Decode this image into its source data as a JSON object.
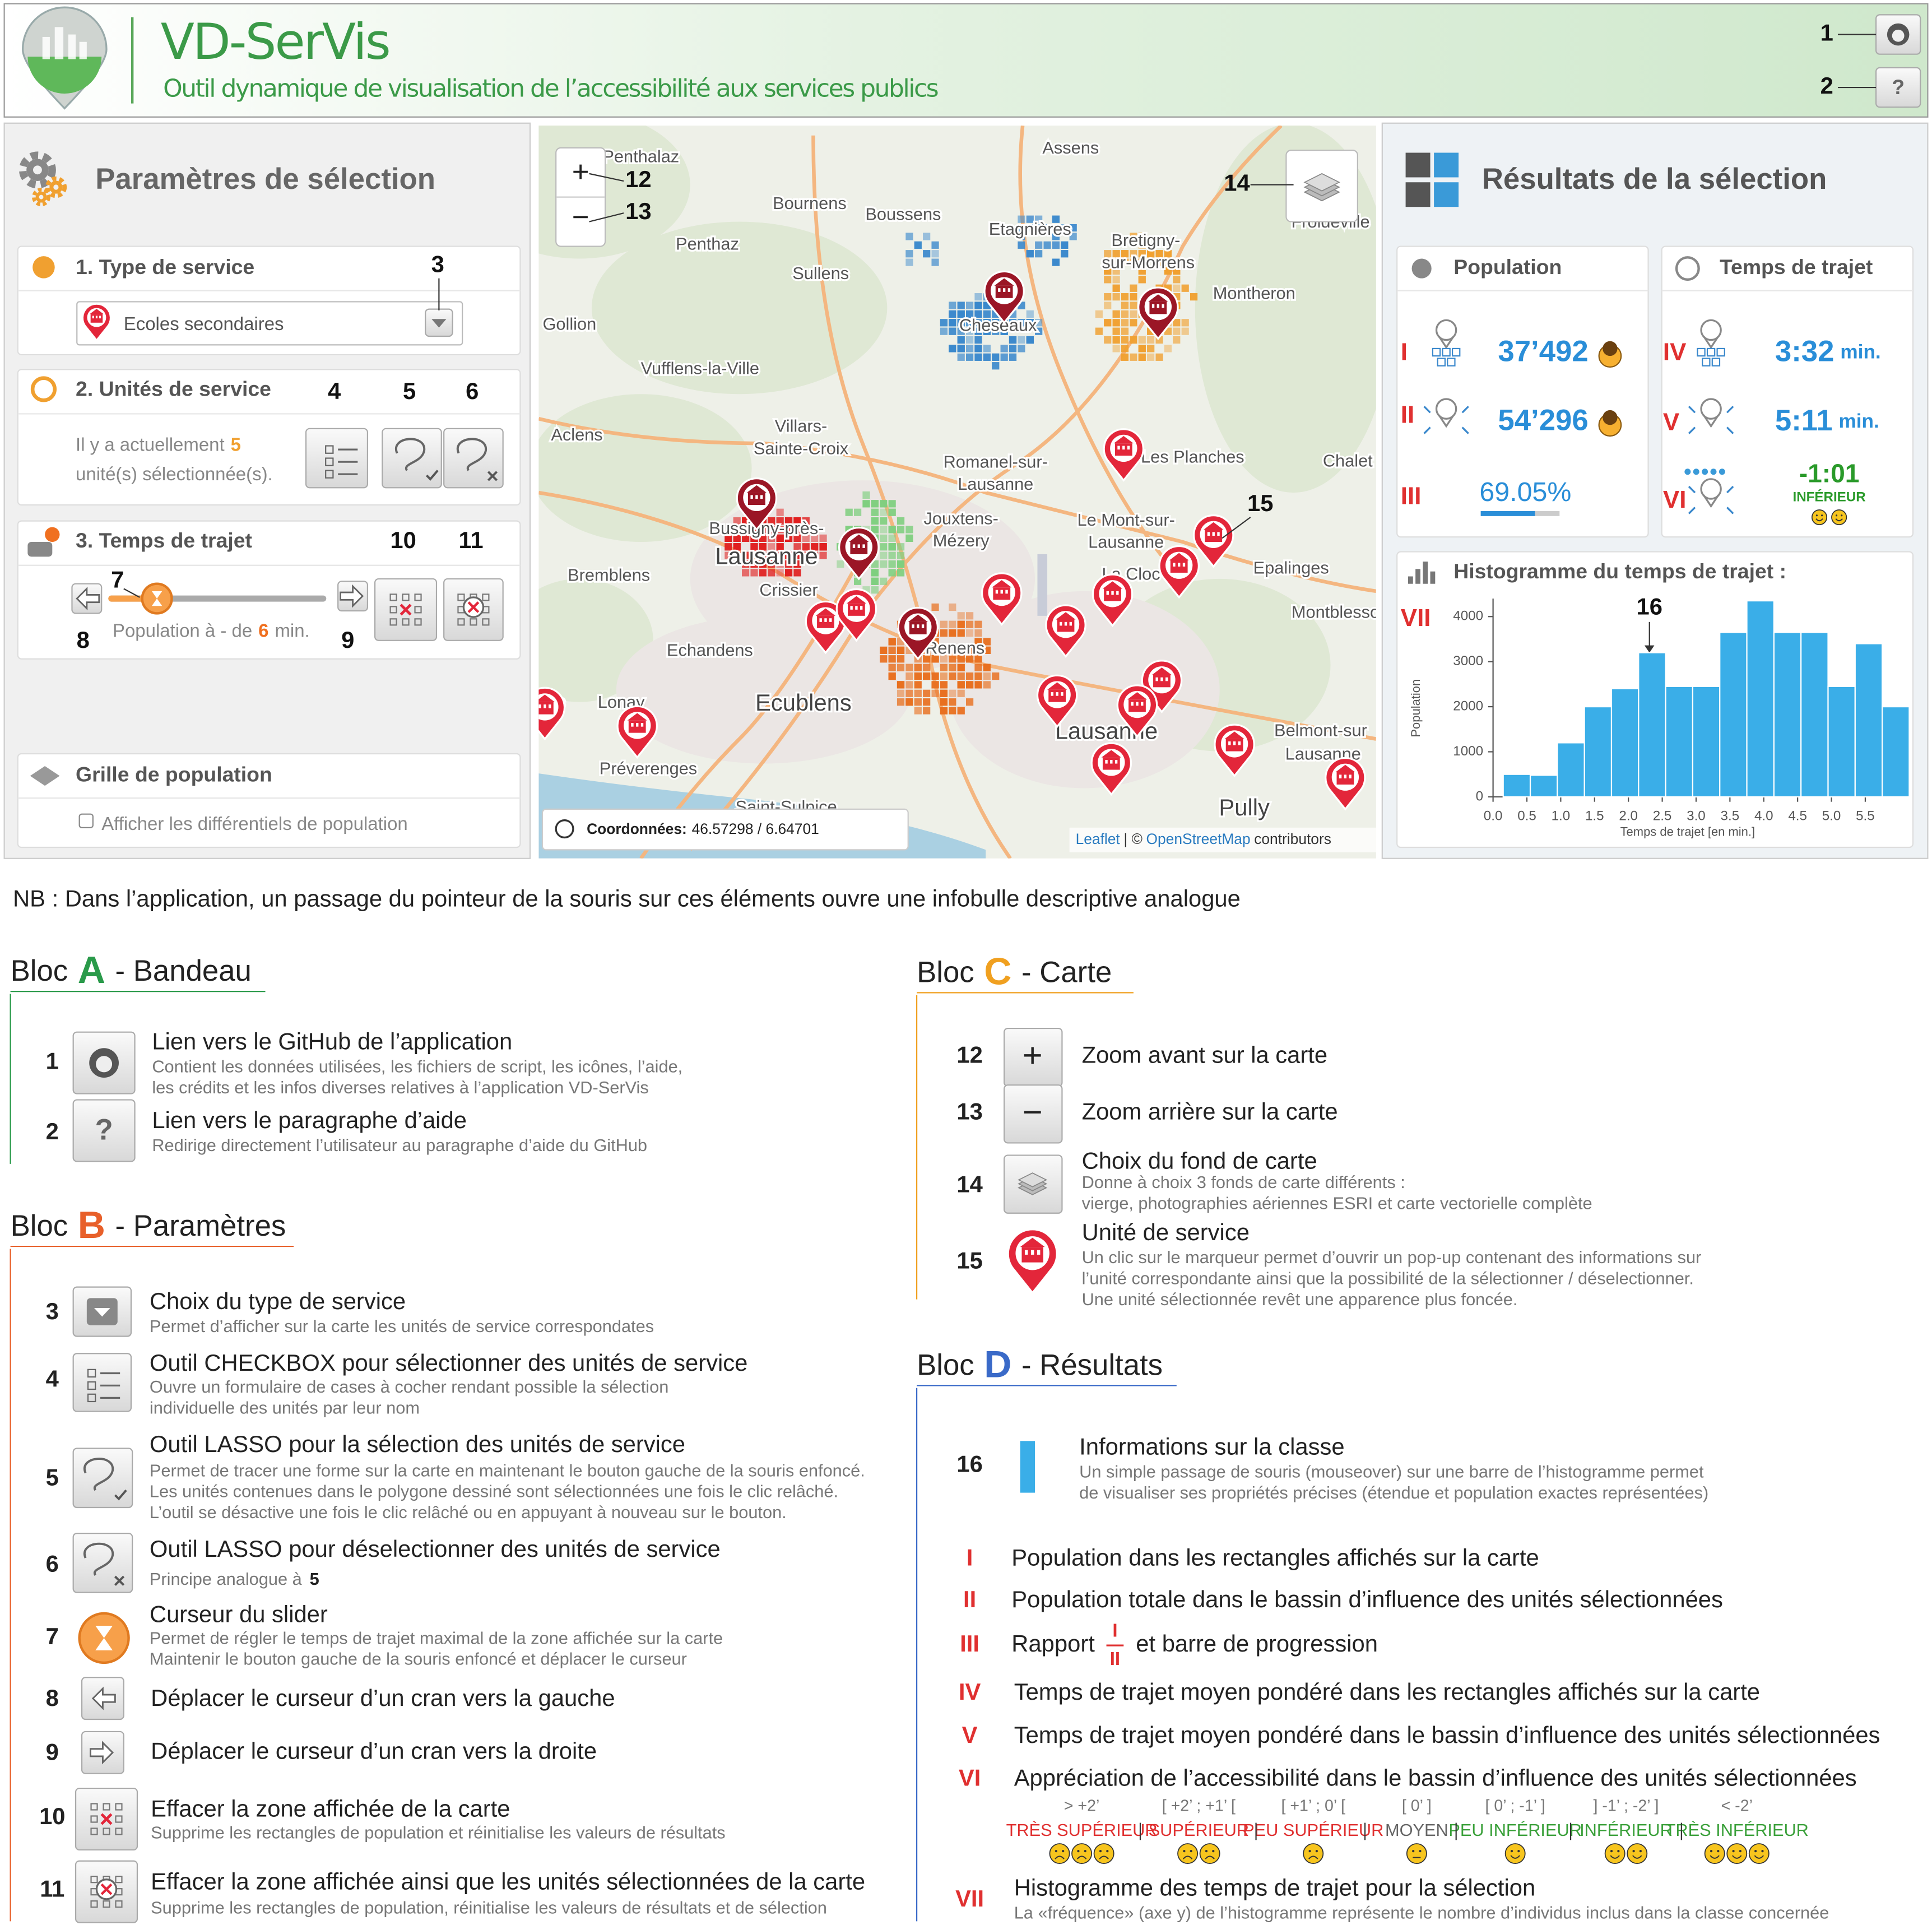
{
  "header": {
    "title": "VD-SerVis",
    "subtitle": "Outil dynamique de visualisation de l’accessibilité aux services publics",
    "help_icon": "?"
  },
  "params": {
    "title": "Paramètres de sélection",
    "service_type": {
      "heading": "1. Type de service",
      "selected": "Ecoles secondaires"
    },
    "units": {
      "heading": "2. Unités de service",
      "text_a": "Il y a actuellement",
      "count": "5",
      "text_b": "unité(s) sélectionnée(s)."
    },
    "travel": {
      "heading": "3. Temps de trajet",
      "text": "Population à - de",
      "value": "6",
      "unit": "min."
    },
    "grid": {
      "heading": "Grille de population",
      "checkbox": "Afficher les différentiels de population"
    }
  },
  "map": {
    "zoom_in": "+",
    "zoom_out": "−",
    "places": [
      "Penthalaz",
      "Assens",
      "Bournens",
      "Boussens",
      "Etagnières",
      "Froideville",
      "Penthaz",
      "Sullens",
      "Bretigny-",
      "sur-Morrens",
      "Cheseaux",
      "Montheron",
      "Gollion",
      "Vufflens-la-Ville",
      "Aclens",
      "Villars-",
      "Sainte-Croix",
      "Romanel-sur-",
      "Lausanne",
      "Les Planches",
      "Chalet",
      "Bussigny-près-",
      "Lausanne",
      "Jouxtens-",
      "Mézery",
      "Le Mont-sur-",
      "Lausanne",
      "La Cloc",
      "Epalinges",
      "Bremblens",
      "Crissier",
      "Montblesson",
      "Echandens",
      "Renens",
      "Lonay",
      "Ecublens",
      "ens",
      "Belmont-sur",
      "Lausanne",
      "Préverenges",
      "Saint-Sulpice",
      "Lausanne",
      "Pully"
    ],
    "coords_label": "Coordonnées:",
    "coords_value": "46.57298 / 6.64701",
    "attribution": [
      "Leaflet",
      "| ©",
      "OpenStreetMap",
      "contributors"
    ]
  },
  "results": {
    "title": "Résultats de la sélection",
    "population": "Population",
    "travel_time": "Temps de trajet",
    "pop_map": "37’492",
    "pop_total": "54’296",
    "ratio": "69.05%",
    "time_map": "3:32",
    "time_total": "5:11",
    "unit": "min.",
    "diff": "-1:01",
    "diff_class": "INFÉRIEUR",
    "histogram_title": "Histogramme du temps de trajet :"
  },
  "chart_data": {
    "type": "histogram",
    "bins": [
      0.15,
      0.55,
      0.95,
      1.35,
      1.75,
      2.15,
      2.55,
      2.95,
      3.35,
      3.75,
      4.15,
      4.55,
      4.95,
      5.35,
      5.75,
      6.15
    ],
    "values": [
      500,
      480,
      1200,
      2000,
      2400,
      3200,
      2450,
      2450,
      3650,
      4350,
      3650,
      3650,
      2450,
      3400,
      2000
    ],
    "color": "#3aaee8",
    "xlim": [
      0,
      6.15
    ],
    "ylim": [
      0,
      4400
    ],
    "xticks": [
      {
        "value": 0,
        "label": "0.0"
      },
      0.5,
      {
        "value": 1,
        "label": "1.0"
      },
      1.5,
      {
        "value": 2,
        "label": "2.0"
      },
      2.5,
      {
        "value": 3,
        "label": "3.0"
      },
      3.5,
      {
        "value": 4,
        "label": "4.0"
      },
      4.5,
      {
        "value": 5,
        "label": "5.0"
      },
      5.5
    ],
    "yticks": [
      0,
      1000,
      2000,
      3000,
      4000
    ],
    "xlabel": "Temps de trajet [en min.]",
    "ylabel": "Population"
  },
  "note": "NB : Dans l’application, un passage du pointeur de la souris sur ces éléments ouvre une infobulle descriptive analogue",
  "legend": {
    "prefix": "Bloc",
    "blocks": [
      {
        "letter": "A",
        "name": "- Bandeau",
        "items": [
          {
            "num": "1",
            "title": "Lien vers le GitHub de l’application",
            "desc": [
              "Contient les données utilisées, les fichiers de script, les icônes, l’aide,",
              "les crédits et les infos diverses relatives à l’application VD-SerVis"
            ]
          },
          {
            "num": "2",
            "title": "Lien vers le paragraphe d’aide",
            "desc": [
              "Redirige directement l’utilisateur au paragraphe d’aide du GitHub"
            ]
          }
        ]
      },
      {
        "letter": "B",
        "name": "- Paramètres",
        "items": [
          {
            "num": "3",
            "title": "Choix du type de service",
            "desc": [
              "Permet d’afficher sur la carte les unités de service correspondates"
            ]
          },
          {
            "num": "4",
            "title": "Outil CHECKBOX pour sélectionner des unités de service",
            "desc": [
              "Ouvre un formulaire de cases à cocher rendant possible la sélection",
              "individuelle des unités par leur nom"
            ]
          },
          {
            "num": "5",
            "title": "Outil LASSO pour la sélection des unités de service",
            "desc": [
              "Permet de tracer une forme sur la carte en maintenant le bouton gauche de la souris enfoncé.",
              "Les unités contenues dans le polygone dessiné sont sélectionnées une fois le clic relâché.",
              "L’outil se désactive une fois le clic relâché ou en appuyant à nouveau sur le bouton."
            ]
          },
          {
            "num": "6",
            "title": "Outil LASSO pour déselectionner des unités de service",
            "desc": [
              "Principe analogue à"
            ]
          },
          {
            "num": "7",
            "title": "Curseur du slider",
            "desc": [
              "Permet de régler le temps de trajet maximal de la zone affichée sur la carte",
              "Maintenir le bouton gauche de la souris enfoncé et déplacer le curseur"
            ]
          },
          {
            "num": "8",
            "title": "Déplacer le curseur d’un cran vers la gauche",
            "desc": []
          },
          {
            "num": "9",
            "title": "Déplacer le curseur d’un cran vers la droite",
            "desc": []
          },
          {
            "num": "10",
            "title": "Effacer la zone affichée de la carte",
            "desc": [
              "Supprime les rectangles de population et réinitialise les valeurs de résultats"
            ]
          },
          {
            "num": "11",
            "title": "Effacer la zone affichée ainsi que les unités sélectionnées de la carte",
            "desc": [
              "Supprime les rectangles de population, réinitialise les valeurs de résultats et de sélection"
            ]
          }
        ]
      },
      {
        "letter": "C",
        "name": "- Carte",
        "items": [
          {
            "num": "12",
            "title": "Zoom avant sur la carte",
            "desc": []
          },
          {
            "num": "13",
            "title": "Zoom arrière sur la carte",
            "desc": []
          },
          {
            "num": "14",
            "title": "Choix du fond de carte",
            "desc": [
              "Donne à choix 3 fonds de carte différents :",
              "vierge, photographies aériennes ESRI et carte vectorielle complète"
            ]
          },
          {
            "num": "15",
            "title": "Unité de service",
            "desc": [
              "Un clic sur le marqueur permet d’ouvrir un pop-up contenant des informations sur",
              "l’unité correspondante ainsi que la possibilité de la sélectionner / déselectionner.",
              "Une unité sélectionnée revêt une apparence plus foncée."
            ]
          }
        ]
      },
      {
        "letter": "D",
        "name": "- Résultats",
        "items": [
          {
            "num": "16",
            "title": "Informations sur la classe",
            "desc": [
              "Un simple passage de souris (mouseover) sur une barre de l’histogramme permet",
              "de visualiser ses propriétés précises (étendue et population exactes représentées)"
            ]
          }
        ],
        "roman": [
          {
            "num": "I",
            "text": "Population dans les rectangles affichés sur la carte"
          },
          {
            "num": "II",
            "text": "Population totale dans le bassin d’influence des unités sélectionnées"
          },
          {
            "num": "III",
            "text": "Rapport",
            "text_b": "et barre de progression"
          },
          {
            "num": "IV",
            "text": "Temps de trajet moyen pondéré dans les rectangles affichés sur la carte"
          },
          {
            "num": "V",
            "text": "Temps de trajet moyen pondéré dans le bassin d’influence des unités sélectionnées"
          },
          {
            "num": "VI",
            "text": "Appréciation de l’accessibilité dans le bassin d’influence des unités sélectionnées"
          },
          {
            "num": "VII",
            "text": "Histogramme des temps de trajet pour la sélection",
            "desc": "La «fréquence» (axe y) de l’histogramme représente le nombre d’individus inclus dans la classe concernée"
          }
        ],
        "scale": {
          "ranges": [
            "> +2’",
            "[ +2’ ; +1’ [",
            "[ +1’ ; 0’ [",
            "[ 0’ ]",
            "[ 0’ ; -1’ ]",
            "] -1’ ; -2’ ]",
            "< -2’"
          ],
          "classes": [
            "TRÈS SUPÉRIEUR",
            "SUPÉRIEUR",
            "PEU SUPÉRIEUR",
            "MOYEN",
            "PEU INFÉRIEUR",
            "INFÉRIEUR",
            "TRÈS INFÉRIEUR"
          ]
        }
      }
    ]
  }
}
